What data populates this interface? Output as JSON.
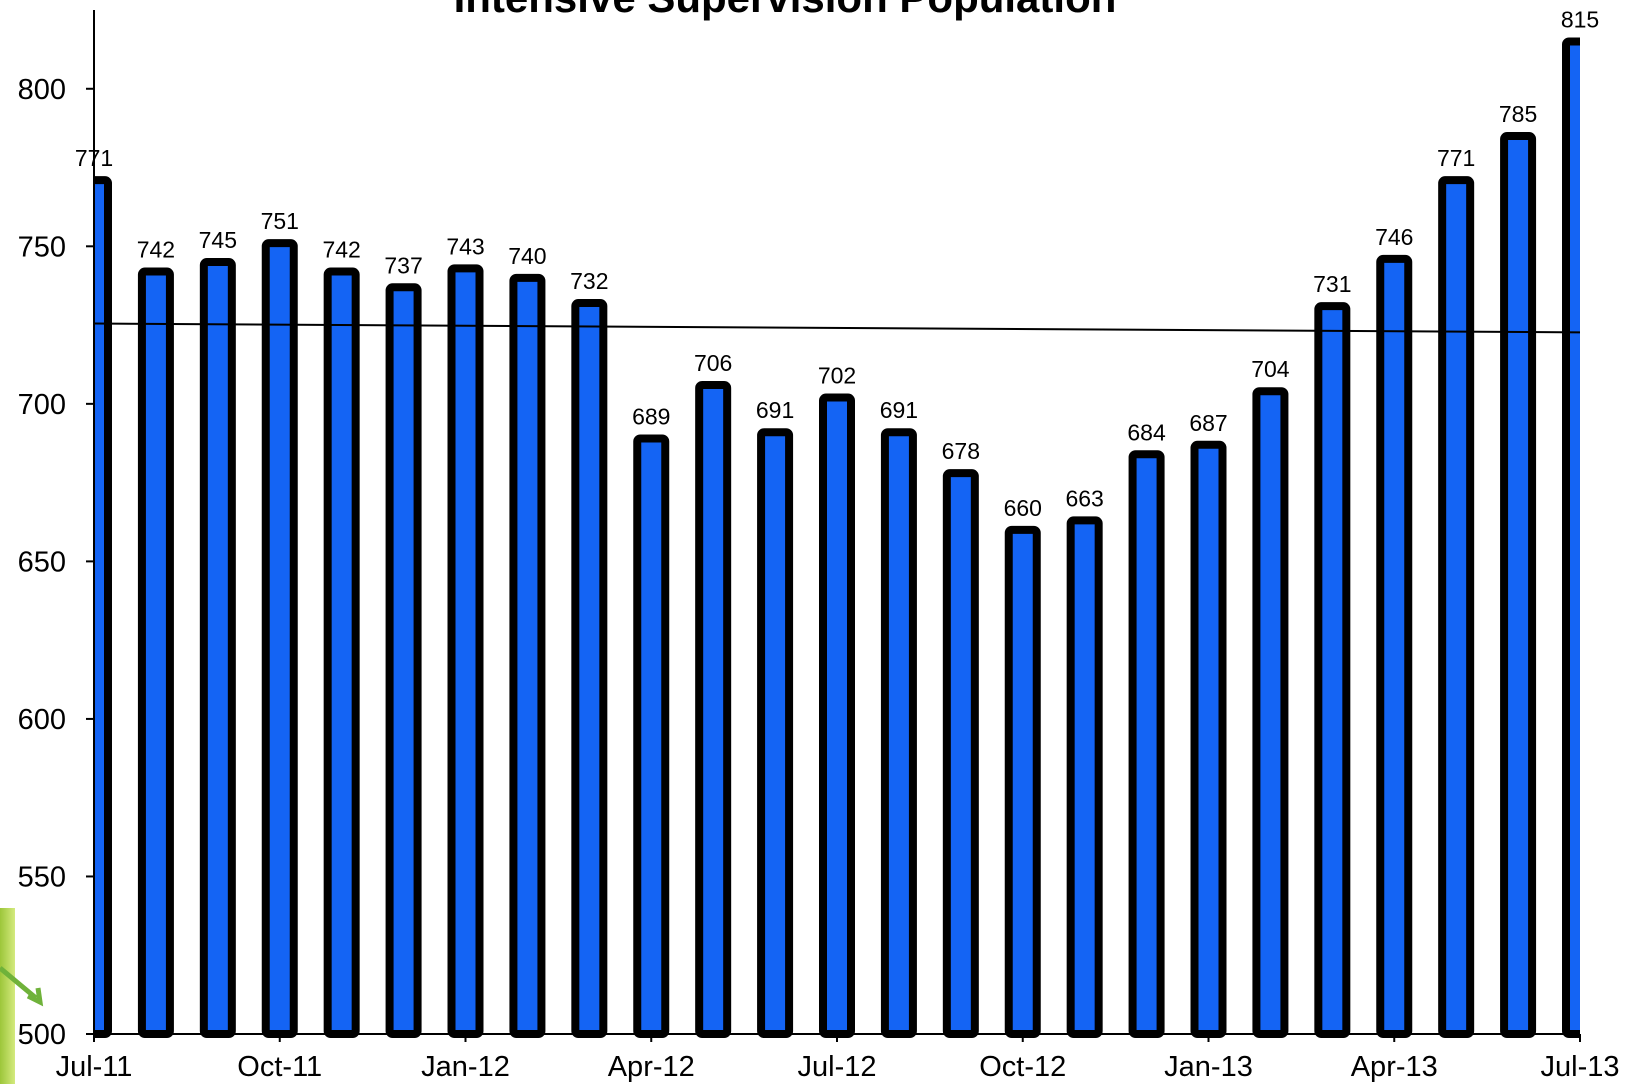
{
  "chart_data": {
    "type": "bar",
    "title": "Intensive Supervision Population",
    "categories": [
      "Jul-11",
      null,
      null,
      "Oct-11",
      null,
      null,
      "Jan-12",
      null,
      null,
      "Apr-12",
      null,
      null,
      "Jul-12",
      null,
      null,
      "Oct-12",
      null,
      null,
      "Jan-13",
      null,
      null,
      "Apr-13",
      null,
      null,
      "Jul-13"
    ],
    "values": [
      771,
      742,
      745,
      751,
      742,
      737,
      743,
      740,
      732,
      689,
      706,
      691,
      702,
      691,
      678,
      660,
      663,
      684,
      687,
      704,
      731,
      746,
      771,
      785,
      815
    ],
    "color": "#1464f4",
    "border_color": "#000000",
    "ylim": [
      500,
      825
    ],
    "yticks": [
      500,
      550,
      600,
      650,
      700,
      750,
      800
    ],
    "grid": false,
    "trendline": {
      "values": [
        725.5,
        722.7
      ]
    }
  }
}
